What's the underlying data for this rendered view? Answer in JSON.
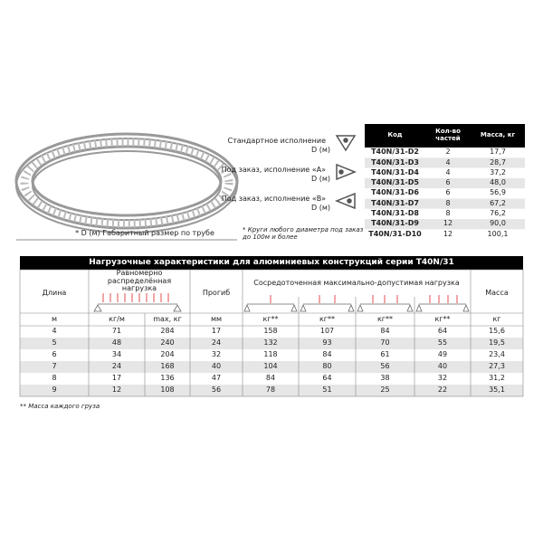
{
  "image_caption": "* D (м)  Габаритный размер по трубе",
  "versions": [
    {
      "label": "Стандартное исполнение",
      "dim": "D (м)"
    },
    {
      "label": "Под заказ, исполнение «A»",
      "dim": "D (м)"
    },
    {
      "label": "Под заказ, исполнение «B»",
      "dim": "D (м)"
    }
  ],
  "note": "* Круги любого диаметра под заказ до 100м и более",
  "parts_table": {
    "header": [
      "Код",
      "Кол-во частей",
      "Масса, кг"
    ],
    "rows": [
      [
        "T40N/31-D2",
        "2",
        "17,7"
      ],
      [
        "T40N/31-D3",
        "4",
        "28,7"
      ],
      [
        "T40N/31-D4",
        "4",
        "37,2"
      ],
      [
        "T40N/31-D5",
        "6",
        "48,0"
      ],
      [
        "T40N/31-D6",
        "6",
        "56,9"
      ],
      [
        "T40N/31-D7",
        "8",
        "67,2"
      ],
      [
        "T40N/31-D8",
        "8",
        "76,2"
      ],
      [
        "T40N/31-D9",
        "12",
        "90,0"
      ],
      [
        "T40N/31-D10",
        "12",
        "100,1"
      ]
    ]
  },
  "load_table": {
    "title": "Нагрузочные характеристики для алюминиевых конструкций серии T40N/31",
    "header": [
      "Длина",
      "Равномерно распределённая нагрузка",
      "Прогиб",
      "Сосредоточенная максимально-допустимая нагрузка",
      "Масса"
    ],
    "units": [
      "м",
      "кг/м",
      "max, кг",
      "мм",
      "кг**",
      "кг**",
      "кг**",
      "кг**",
      "кг"
    ],
    "rows": [
      [
        "4",
        "71",
        "284",
        "17",
        "158",
        "107",
        "84",
        "64",
        "15,6"
      ],
      [
        "5",
        "48",
        "240",
        "24",
        "132",
        "93",
        "70",
        "55",
        "19,5"
      ],
      [
        "6",
        "34",
        "204",
        "32",
        "118",
        "84",
        "61",
        "49",
        "23,4"
      ],
      [
        "7",
        "24",
        "168",
        "40",
        "104",
        "80",
        "56",
        "40",
        "27,3"
      ],
      [
        "8",
        "17",
        "136",
        "47",
        "84",
        "64",
        "38",
        "32",
        "31,2"
      ],
      [
        "9",
        "12",
        "108",
        "56",
        "78",
        "51",
        "25",
        "22",
        "35,1"
      ]
    ]
  },
  "footnote": "** Масса каждого груза"
}
